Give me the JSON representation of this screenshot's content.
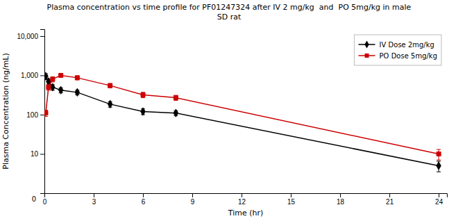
{
  "chart_data": {
    "type": "line",
    "title": "Plasma concentration vs time profile for PF01247324 after IV 2 mg/kg  and  PO 5mg/kg in male\nSD rat",
    "xlabel": "Time (hr)",
    "ylabel": "Plasma Concentration (ng/mL)",
    "x": [
      0.083,
      0.25,
      0.5,
      1.0,
      2.0,
      4.0,
      6.0,
      8.0,
      24.0
    ],
    "series": [
      {
        "name": "IV Dose 2mg/kg",
        "color": "#000000",
        "marker": "diamond",
        "values": [
          950,
          700,
          500,
          420,
          370,
          185,
          120,
          110,
          5
        ],
        "errors": [
          150,
          100,
          80,
          60,
          50,
          30,
          20,
          15,
          1.5
        ]
      },
      {
        "name": "PO Dose 5mg/kg",
        "color": "#cc0000",
        "marker": "square",
        "values": [
          110,
          500,
          800,
          1000,
          870,
          550,
          320,
          270,
          10
        ],
        "errors": [
          20,
          80,
          120,
          80,
          100,
          70,
          50,
          40,
          3
        ]
      }
    ],
    "xlim": [
      0,
      24.5
    ],
    "xticks": [
      0,
      3,
      6,
      9,
      12,
      15,
      18,
      21,
      24
    ],
    "ylim": [
      1,
      15000
    ],
    "yticks": [
      10,
      100,
      {
        "value": 1000,
        "label": "1,000"
      },
      {
        "value": 10000,
        "label": "10,000"
      }
    ],
    "log": "y",
    "grid": false,
    "legend": "upper right",
    "annotations": [
      {
        "text": "0"
      }
    ]
  }
}
